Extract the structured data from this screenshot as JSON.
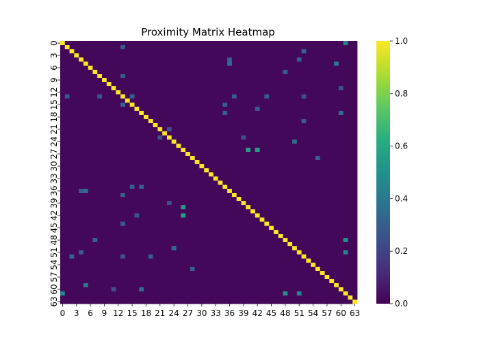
{
  "chart_data": {
    "type": "heatmap",
    "title": "Proximity Matrix Heatmap",
    "xlabel": "",
    "ylabel": "",
    "size": 64,
    "x_tick_labels": [
      "0",
      "3",
      "6",
      "9",
      "12",
      "15",
      "18",
      "21",
      "24",
      "27",
      "30",
      "33",
      "36",
      "39",
      "42",
      "45",
      "48",
      "51",
      "54",
      "57",
      "60",
      "63"
    ],
    "y_tick_labels": [
      "0",
      "3",
      "6",
      "9",
      "12",
      "15",
      "18",
      "21",
      "24",
      "27",
      "30",
      "33",
      "36",
      "39",
      "42",
      "45",
      "48",
      "51",
      "54",
      "57",
      "60",
      "63"
    ],
    "colorbar": {
      "min": 0.0,
      "max": 1.0,
      "ticks": [
        "0.0",
        "0.2",
        "0.4",
        "0.6",
        "0.8",
        "1.0"
      ]
    },
    "colormap": "viridis",
    "diagonal_value": 1.0,
    "background_value": 0.02,
    "notable_cells": [
      {
        "row": 0,
        "col": 61,
        "value": 0.45
      },
      {
        "row": 26,
        "col": 42,
        "value": 0.55
      },
      {
        "row": 40,
        "col": 26,
        "value": 0.55
      },
      {
        "row": 48,
        "col": 61,
        "value": 0.5
      },
      {
        "row": 61,
        "col": 51,
        "value": 0.45
      },
      {
        "row": 59,
        "col": 5,
        "value": 0.4
      },
      {
        "row": 24,
        "col": 50,
        "value": 0.35
      },
      {
        "row": 36,
        "col": 5,
        "value": 0.35
      },
      {
        "row": 13,
        "col": 15,
        "value": 0.32
      },
      {
        "row": 2,
        "col": 52,
        "value": 0.33
      },
      {
        "row": 15,
        "col": 35,
        "value": 0.3
      },
      {
        "row": 4,
        "col": 36,
        "value": 0.3
      },
      {
        "row": 55,
        "col": 28,
        "value": 0.3
      },
      {
        "row": 19,
        "col": 52,
        "value": 0.3
      },
      {
        "row": 11,
        "col": 60,
        "value": 0.25
      },
      {
        "row": 37,
        "col": 13,
        "value": 0.3
      },
      {
        "row": 44,
        "col": 13,
        "value": 0.3
      },
      {
        "row": 48,
        "col": 7,
        "value": 0.3
      },
      {
        "row": 51,
        "col": 4,
        "value": 0.3
      },
      {
        "row": 8,
        "col": 13,
        "value": 0.28
      },
      {
        "row": 35,
        "col": 17,
        "value": 0.3
      },
      {
        "row": 42,
        "col": 16,
        "value": 0.28
      },
      {
        "row": 1,
        "col": 13,
        "value": 0.28
      },
      {
        "row": 21,
        "col": 23,
        "value": 0.25
      },
      {
        "row": 23,
        "col": 39,
        "value": 0.25
      },
      {
        "row": 60,
        "col": 17,
        "value": 0.35
      },
      {
        "row": 52,
        "col": 13,
        "value": 0.25
      }
    ]
  }
}
